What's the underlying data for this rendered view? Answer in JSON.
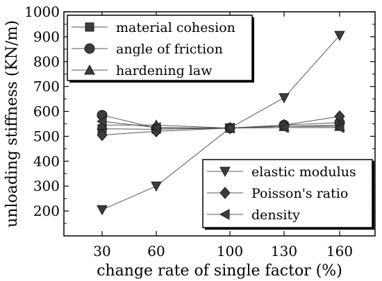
{
  "chart_data": {
    "type": "line",
    "xlabel": "change rate of single factor (%)",
    "ylabel": "unloading stiffness (KN/m)",
    "categories": [
      "30",
      "60",
      "100",
      "130",
      "160"
    ],
    "ylim": [
      100,
      1000
    ],
    "yticks": [
      "200",
      "300",
      "400",
      "500",
      "600",
      "700",
      "800",
      "900",
      "1000"
    ],
    "grid": false,
    "legend_groups": [
      {
        "placement": "top-left",
        "series": [
          "material cohesion",
          "angle of friction",
          "hardening law"
        ]
      },
      {
        "placement": "bottom-right",
        "series": [
          "elastic modulus",
          "Poisson's ratio",
          "density"
        ]
      }
    ],
    "series": [
      {
        "name": "material cohesion",
        "marker": "square",
        "values": [
          530,
          528,
          533,
          540,
          545
        ]
      },
      {
        "name": "angle of friction",
        "marker": "circle",
        "values": [
          585,
          533,
          533,
          545,
          555
        ]
      },
      {
        "name": "hardening law",
        "marker": "triangle-up",
        "values": [
          545,
          545,
          533,
          540,
          540
        ]
      },
      {
        "name": "elastic modulus",
        "marker": "triangle-down",
        "values": [
          205,
          300,
          533,
          655,
          905
        ]
      },
      {
        "name": "Poisson's ratio",
        "marker": "diamond",
        "values": [
          505,
          520,
          533,
          545,
          580
        ]
      },
      {
        "name": "density",
        "marker": "triangle-left",
        "values": [
          560,
          535,
          533,
          535,
          535
        ]
      }
    ]
  }
}
